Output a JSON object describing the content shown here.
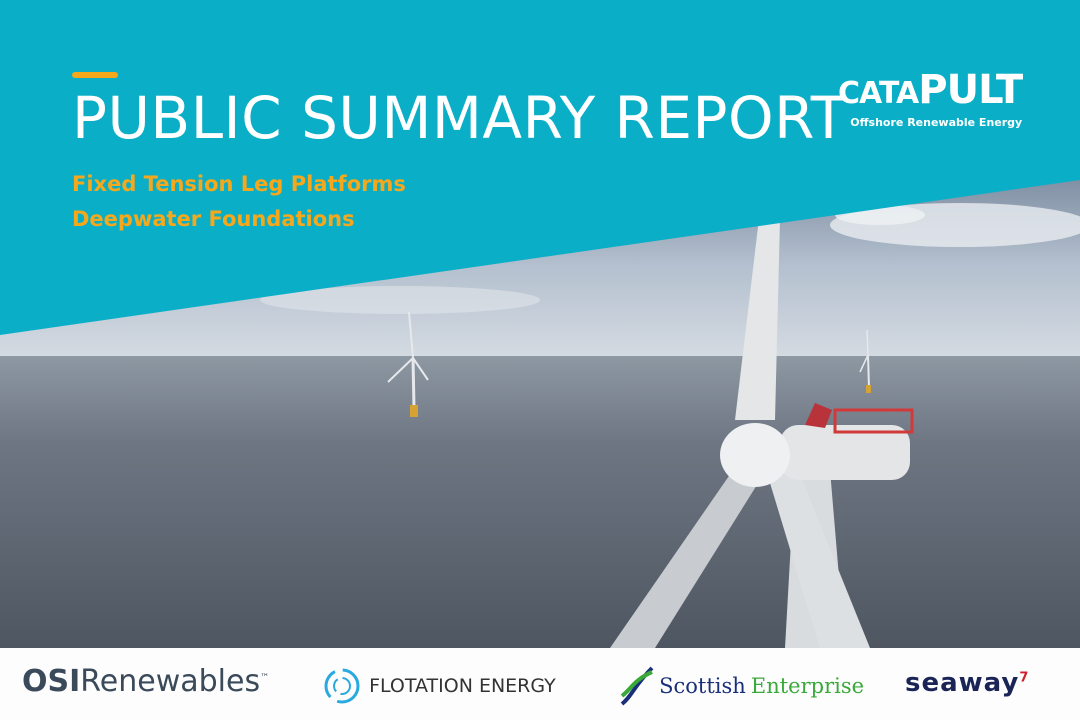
{
  "header": {
    "title": "PUBLIC SUMMARY REPORT",
    "subtitle_line1": "Fixed Tension Leg Platforms",
    "subtitle_line2": "Deepwater Foundations"
  },
  "brand": {
    "logo_prefix": "cata",
    "logo_suffix": "PULT",
    "logo_tagline": "Offshore Renewable Energy"
  },
  "colors": {
    "teal": "#0aafc7",
    "accent": "#f5a81c"
  },
  "photo": {
    "description_icon": "offshore-wind-turbine-photo"
  },
  "partners": [
    {
      "bold": "OSI",
      "rest": "Renewables",
      "mark": "™"
    },
    {
      "name": "FLOTATION ENERGY"
    },
    {
      "word1": "Scottish",
      "word2": "Enterprise"
    },
    {
      "name": "seaway",
      "mark": "7"
    }
  ]
}
